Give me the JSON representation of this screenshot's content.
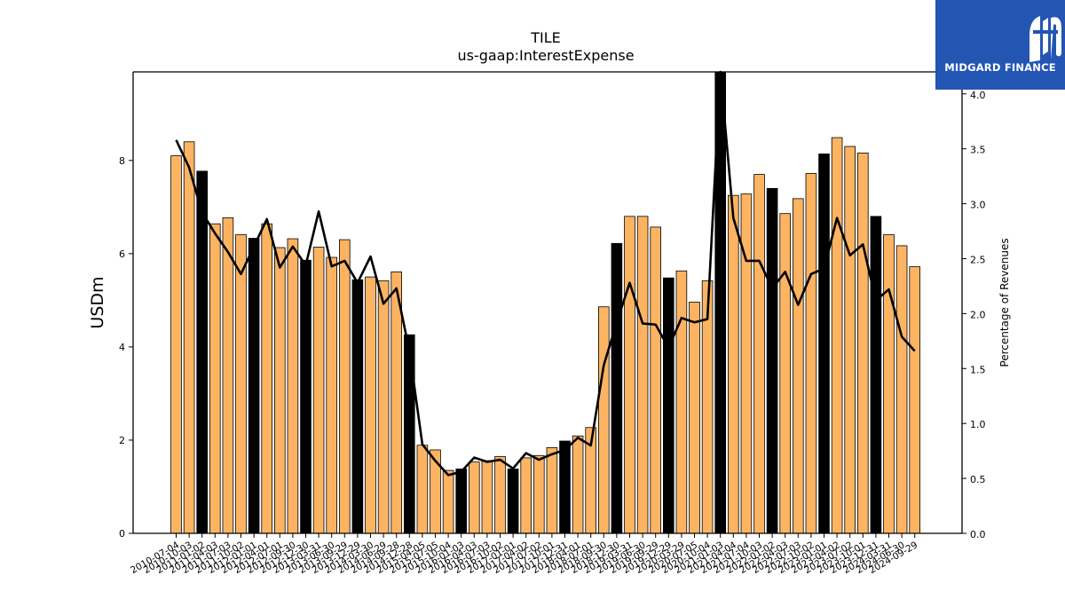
{
  "chart_data": {
    "type": "bar",
    "title": "TILE",
    "subtitle": "us-gaap:InterestExpense",
    "ylabel": "USDm",
    "y2label": "Percentage of Revenues",
    "ylim": [
      0,
      9.9
    ],
    "y2lim": [
      0,
      4.2
    ],
    "yticks": [
      "0",
      "2",
      "4",
      "6",
      "8"
    ],
    "y2ticks": [
      "0.0",
      "0.5",
      "1.0",
      "1.5",
      "2.0",
      "2.5",
      "3.0",
      "3.5",
      "4.0"
    ],
    "colors": {
      "bar": "#fdb462",
      "bar_highlight": "#000000",
      "line": "#000000",
      "logo_bg": "#2355b3"
    },
    "categories": [
      "2010-07-04",
      "2010-10-03",
      "2011-01-02",
      "2011-04-03",
      "2011-07-03",
      "2011-10-02",
      "2012-01-01",
      "2012-04-01",
      "2012-07-01",
      "2012-09-30",
      "2012-12-30",
      "2013-03-31",
      "2013-06-30",
      "2013-09-29",
      "2013-12-29",
      "2014-03-30",
      "2014-06-29",
      "2014-09-28",
      "2014-12-28",
      "2015-04-05",
      "2015-07-05",
      "2015-10-04",
      "2016-01-03",
      "2016-04-03",
      "2016-07-03",
      "2016-10-02",
      "2017-01-01",
      "2017-04-02",
      "2017-07-02",
      "2017-10-01",
      "2017-12-31",
      "2018-04-01",
      "2018-07-01",
      "2018-09-30",
      "2018-12-30",
      "2019-03-31",
      "2019-06-30",
      "2019-09-29",
      "2019-12-29",
      "2020-03-29",
      "2020-07-05",
      "2020-10-04",
      "2021-01-03",
      "2021-04-04",
      "2021-07-04",
      "2021-10-03",
      "2022-01-02",
      "2022-04-03",
      "2022-07-03",
      "2022-10-02",
      "2023-01-01",
      "2023-04-02",
      "2023-07-02",
      "2023-10-01",
      "2023-12-31",
      "2024-03-31",
      "2024-06-30",
      "2024-09-29"
    ],
    "values": [
      8.1,
      8.4,
      7.77,
      6.64,
      6.77,
      6.41,
      6.33,
      6.64,
      6.13,
      6.32,
      5.86,
      6.14,
      5.92,
      6.3,
      5.44,
      5.5,
      5.42,
      5.61,
      4.26,
      1.89,
      1.79,
      1.35,
      1.38,
      1.53,
      1.56,
      1.65,
      1.38,
      1.62,
      1.67,
      1.84,
      1.98,
      2.09,
      2.27,
      4.86,
      6.22,
      6.8,
      6.8,
      6.57,
      5.48,
      5.63,
      4.96,
      5.42,
      9.95,
      7.25,
      7.28,
      7.7,
      7.4,
      6.86,
      7.18,
      7.72,
      8.14,
      8.49,
      8.3,
      8.16,
      6.8,
      6.41,
      6.17,
      5.72
    ],
    "highlight": [
      false,
      false,
      true,
      false,
      false,
      false,
      true,
      false,
      false,
      false,
      true,
      false,
      false,
      false,
      true,
      false,
      false,
      false,
      true,
      false,
      false,
      false,
      true,
      false,
      false,
      false,
      true,
      false,
      false,
      false,
      true,
      false,
      false,
      false,
      true,
      false,
      false,
      false,
      true,
      false,
      false,
      false,
      true,
      false,
      false,
      false,
      true,
      false,
      false,
      false,
      true,
      false,
      false,
      false,
      true,
      false,
      false,
      false
    ],
    "line_values": [
      3.58,
      3.33,
      2.92,
      2.73,
      2.56,
      2.36,
      2.61,
      2.86,
      2.42,
      2.61,
      2.44,
      2.93,
      2.43,
      2.48,
      2.28,
      2.52,
      2.09,
      2.23,
      1.66,
      0.81,
      0.66,
      0.53,
      0.56,
      0.69,
      0.65,
      0.67,
      0.59,
      0.73,
      0.67,
      0.72,
      0.76,
      0.87,
      0.8,
      1.53,
      1.92,
      2.28,
      1.91,
      1.9,
      1.69,
      1.96,
      1.92,
      1.95,
      4.25,
      2.87,
      2.48,
      2.48,
      2.23,
      2.38,
      2.08,
      2.36,
      2.41,
      2.87,
      2.53,
      2.63,
      2.12,
      2.22,
      1.79,
      1.66
    ]
  },
  "logo": {
    "text": "MIDGARD FINANCE",
    "icon": "midgard-logo-icon"
  }
}
